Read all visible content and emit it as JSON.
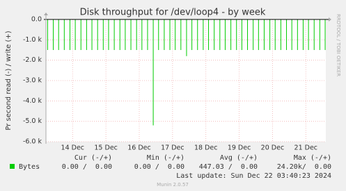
{
  "chart_data": {
    "type": "spikes",
    "title": "Disk throughput for /dev/loop4 - by week",
    "y_label": "Pr second read (-) / write (+)",
    "side_text": "RRDTOOL / TOBI OETIKER",
    "ylim": [
      -6000,
      0
    ],
    "yticks": [
      {
        "value": 0,
        "label": "0.0"
      },
      {
        "value": -1000,
        "label": "-1.0 k"
      },
      {
        "value": -2000,
        "label": "-2.0 k"
      },
      {
        "value": -3000,
        "label": "-3.0 k"
      },
      {
        "value": -4000,
        "label": "-4.0 k"
      },
      {
        "value": -5000,
        "label": "-5.0 k"
      },
      {
        "value": -6000,
        "label": "-6.0 k"
      }
    ],
    "xlim": [
      13.2,
      21.6
    ],
    "xticks": [
      {
        "value": 14,
        "label": "14 Dec"
      },
      {
        "value": 15,
        "label": "15 Dec"
      },
      {
        "value": 16,
        "label": "16 Dec"
      },
      {
        "value": 17,
        "label": "17 Dec"
      },
      {
        "value": 18,
        "label": "18 Dec"
      },
      {
        "value": 19,
        "label": "19 Dec"
      },
      {
        "value": 20,
        "label": "20 Dec"
      },
      {
        "value": 21,
        "label": "21 Dec"
      }
    ],
    "grid": true,
    "series": [
      {
        "name": "Bytes",
        "color": "#00cc00",
        "x": [
          13.25,
          13.42,
          13.58,
          13.75,
          13.92,
          14.08,
          14.25,
          14.42,
          14.58,
          14.75,
          14.92,
          15.08,
          15.25,
          15.42,
          15.58,
          15.75,
          15.92,
          16.08,
          16.25,
          16.42,
          16.58,
          16.75,
          16.92,
          17.08,
          17.25,
          17.42,
          17.58,
          17.75,
          17.92,
          18.08,
          18.25,
          18.42,
          18.58,
          18.75,
          18.92,
          19.08,
          19.25,
          19.42,
          19.58,
          19.75,
          19.92,
          20.08,
          20.25,
          20.42,
          20.58,
          20.75,
          20.92,
          21.08,
          21.25,
          21.42,
          21.58
        ],
        "values": [
          -1500,
          -1500,
          -1500,
          -1500,
          -1500,
          -1500,
          -1500,
          -1500,
          -1500,
          -1500,
          -1500,
          -1500,
          -1500,
          -1500,
          -1500,
          -1500,
          -1500,
          -1500,
          -1500,
          -5200,
          -1500,
          -1500,
          -1500,
          -1500,
          -1500,
          -1800,
          -1500,
          -1500,
          -1500,
          -1500,
          -1500,
          -1500,
          -1500,
          -1500,
          -1500,
          -1500,
          -1500,
          -1500,
          -1500,
          -1500,
          -1500,
          -1500,
          -1500,
          -1500,
          -1500,
          -1500,
          -1500,
          -1500,
          -1500,
          -1500,
          -1500
        ]
      }
    ],
    "stats": {
      "headers": [
        "Cur (-/+)",
        "Min (-/+)",
        "Avg (-/+)",
        "Max (-/+)"
      ],
      "cells": [
        "0.00 /  0.00",
        "0.00 /  0.00",
        "447.03 /  0.00",
        "24.20k/  0.00"
      ]
    },
    "last_update": "Last update: Sun Dec 22 03:40:23 2024",
    "footer": "Munin 2.0.57"
  }
}
